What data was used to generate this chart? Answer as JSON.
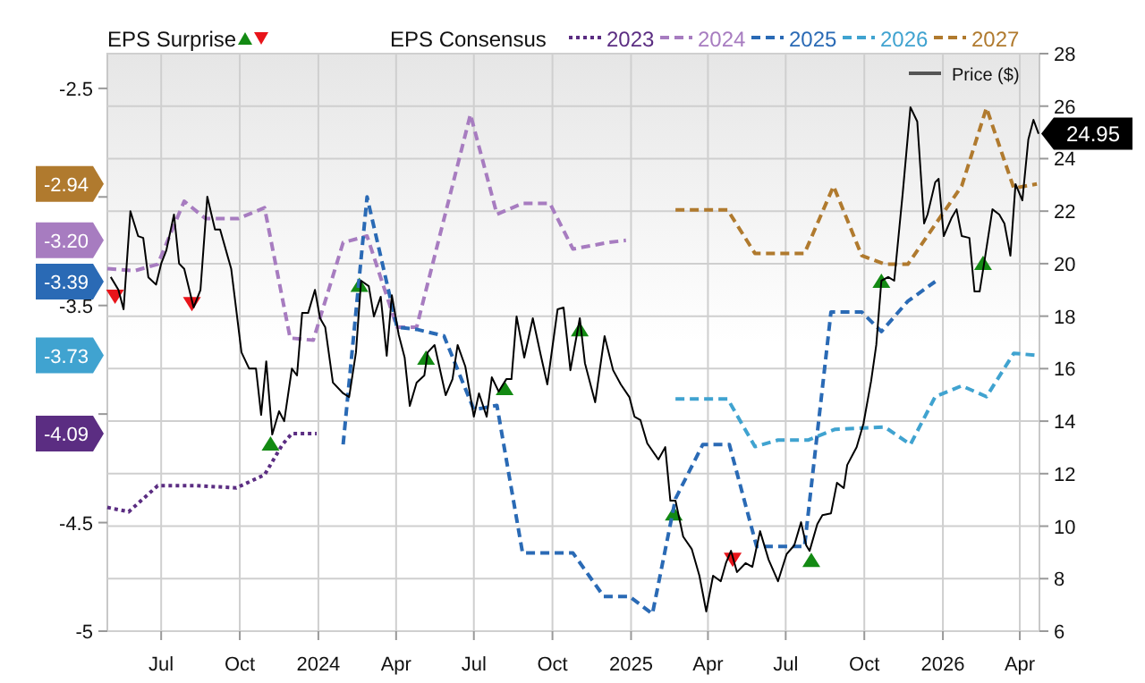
{
  "chart_data": {
    "type": "line",
    "legend_title": "EPS Consensus",
    "xlim": [
      "2023-04-29",
      "2026-04-24"
    ],
    "xticks": [
      {
        "value": "2023-07-01",
        "label": "Jul"
      },
      {
        "value": "2023-10-01",
        "label": "Oct"
      },
      {
        "value": "2024-01-01",
        "label": "2024"
      },
      {
        "value": "2024-04-01",
        "label": "Apr"
      },
      {
        "value": "2024-07-01",
        "label": "Jul"
      },
      {
        "value": "2024-10-01",
        "label": "Oct"
      },
      {
        "value": "2025-01-01",
        "label": "2025"
      },
      {
        "value": "2025-04-01",
        "label": "Apr"
      },
      {
        "value": "2025-07-01",
        "label": "Jul"
      },
      {
        "value": "2025-10-01",
        "label": "Oct"
      },
      {
        "value": "2026-01-01",
        "label": "2026"
      },
      {
        "value": "2026-04-01",
        "label": "Apr"
      }
    ],
    "annotations": [
      "EPS Surprise",
      {
        "text": "-4.09",
        "y": -4.09
      },
      {
        "text": "-3.20",
        "y": -3.2
      },
      {
        "text": "-3.39",
        "y": -3.39
      },
      {
        "text": "-3.73",
        "y": -3.73
      },
      {
        "text": "-2.94",
        "y": -2.94
      }
    ],
    "ylim": [
      -5,
      -2.34
    ],
    "yticks": [
      -5,
      -4.5,
      {
        "value": -4,
        "label": null
      },
      -3.5,
      {
        "value": -3,
        "label": null
      },
      -2.5
    ],
    "y2lim": [
      6,
      28
    ],
    "y2ticks": [
      6,
      8,
      10,
      12,
      14,
      16,
      18,
      20,
      22,
      24,
      26,
      28
    ],
    "grid": true,
    "legend": "top",
    "series": [
      {
        "type": "scatter",
        "axis": "y2",
        "marker": "triangle",
        "color": "#138a13",
        "x": [
          "2023-11-06",
          "2024-02-18",
          "2024-05-06",
          "2024-08-06",
          "2024-11-02",
          "2025-02-20",
          "2025-07-31",
          "2025-10-21",
          "2026-02-17"
        ],
        "values": [
          13.15,
          19.2,
          16.42,
          15.26,
          17.5,
          10.49,
          8.72,
          19.35,
          20.03
        ]
      },
      {
        "type": "scatter",
        "axis": "y2",
        "marker": "triangle",
        "color": "#e8141a",
        "x": [
          "2023-05-08",
          "2023-08-06",
          "2025-04-30"
        ],
        "values": [
          18.74,
          18.46,
          8.72
        ]
      },
      {
        "name": "2023",
        "line_style": "dotted",
        "color": "#5b2d82",
        "x": [
          "2023-04-29",
          "2023-05-24",
          "2023-06-27",
          "2023-08-12",
          "2023-09-27",
          "2023-10-30",
          "2023-11-20",
          "2023-12-01",
          "2023-12-30"
        ],
        "values": [
          -4.43,
          -4.45,
          -4.33,
          -4.33,
          -4.34,
          -4.28,
          -4.14,
          -4.09,
          -4.09
        ]
      },
      {
        "name": "2024",
        "line_style": "dashed",
        "color": "#a77cc0",
        "x": [
          "2023-04-29",
          "2023-05-31",
          "2023-06-27",
          "2023-07-28",
          "2023-08-22",
          "2023-09-29",
          "2023-10-30",
          "2023-11-29",
          "2023-12-26",
          "2024-01-30",
          "2024-02-27",
          "2024-04-02",
          "2024-04-25",
          "2024-06-27",
          "2024-07-28",
          "2024-08-27",
          "2024-09-28",
          "2024-10-25",
          "2024-12-05",
          "2024-12-26"
        ],
        "values": [
          -3.33,
          -3.34,
          -3.31,
          -3.02,
          -3.1,
          -3.1,
          -3.05,
          -3.65,
          -3.66,
          -3.21,
          -3.18,
          -3.6,
          -3.6,
          -2.62,
          -3.08,
          -3.03,
          -3.03,
          -3.24,
          -3.21,
          -3.2
        ]
      },
      {
        "name": "2025",
        "line_style": "dashed",
        "color": "#2a6ab5",
        "x": [
          "2024-01-30",
          "2024-02-27",
          "2024-04-02",
          "2024-04-25",
          "2024-05-27",
          "2024-07-01",
          "2024-07-28",
          "2024-08-27",
          "2024-10-25",
          "2024-11-30",
          "2024-12-30",
          "2025-01-26",
          "2025-02-22",
          "2025-03-26",
          "2025-04-26",
          "2025-05-28",
          "2025-07-23",
          "2025-08-23",
          "2025-09-28",
          "2025-10-21",
          "2025-11-21",
          "2025-12-23"
        ],
        "values": [
          -4.14,
          -3.0,
          -3.6,
          -3.61,
          -3.64,
          -3.98,
          -3.96,
          -4.64,
          -4.64,
          -4.84,
          -4.84,
          -4.92,
          -4.39,
          -4.14,
          -4.14,
          -4.61,
          -4.61,
          -3.53,
          -3.53,
          -3.62,
          -3.48,
          -3.39
        ]
      },
      {
        "name": "2026",
        "line_style": "dashed",
        "color": "#40a3d0",
        "x": [
          "2025-02-22",
          "2025-04-24",
          "2025-05-26",
          "2025-06-22",
          "2025-07-27",
          "2025-08-28",
          "2025-10-25",
          "2025-11-24",
          "2025-12-23",
          "2026-01-23",
          "2026-02-21",
          "2026-03-25",
          "2026-04-21"
        ],
        "values": [
          -3.93,
          -3.93,
          -4.15,
          -4.12,
          -4.12,
          -4.07,
          -4.06,
          -4.14,
          -3.92,
          -3.87,
          -3.92,
          -3.72,
          -3.73
        ]
      },
      {
        "name": "2027",
        "line_style": "dashed",
        "color": "#b07a2e",
        "x": [
          "2025-02-22",
          "2025-04-24",
          "2025-05-26",
          "2025-07-23",
          "2025-08-26",
          "2025-09-28",
          "2025-10-25",
          "2025-11-21",
          "2026-01-23",
          "2026-02-21",
          "2026-03-25",
          "2026-04-21"
        ],
        "values": [
          -3.06,
          -3.06,
          -3.26,
          -3.26,
          -2.95,
          -3.27,
          -3.31,
          -3.31,
          -2.95,
          -2.59,
          -2.96,
          -2.94
        ]
      },
      {
        "name": "Price ($)",
        "axis": "y2",
        "line_style": "solid",
        "color": "#000000",
        "x": [
          "2023-05-03",
          "2023-05-12",
          "2023-05-18",
          "2023-05-26",
          "2023-06-04",
          "2023-06-10",
          "2023-06-16",
          "2023-06-25",
          "2023-07-01",
          "2023-07-07",
          "2023-07-16",
          "2023-07-22",
          "2023-07-28",
          "2023-08-08",
          "2023-08-16",
          "2023-08-24",
          "2023-09-02",
          "2023-09-08",
          "2023-09-21",
          "2023-10-03",
          "2023-10-12",
          "2023-10-20",
          "2023-10-26",
          "2023-11-01",
          "2023-11-08",
          "2023-11-16",
          "2023-11-22",
          "2023-12-01",
          "2023-12-07",
          "2023-12-13",
          "2023-12-20",
          "2023-12-28",
          "2024-01-03",
          "2024-01-09",
          "2024-01-18",
          "2024-01-30",
          "2024-02-06",
          "2024-02-14",
          "2024-02-20",
          "2024-02-29",
          "2024-03-06",
          "2024-03-14",
          "2024-03-21",
          "2024-03-27",
          "2024-04-04",
          "2024-04-11",
          "2024-04-17",
          "2024-04-25",
          "2024-05-04",
          "2024-05-08",
          "2024-05-16",
          "2024-05-29",
          "2024-06-06",
          "2024-06-12",
          "2024-06-21",
          "2024-07-01",
          "2024-07-07",
          "2024-07-16",
          "2024-07-22",
          "2024-07-30",
          "2024-08-08",
          "2024-08-14",
          "2024-08-20",
          "2024-08-29",
          "2024-09-08",
          "2024-09-17",
          "2024-09-25",
          "2024-10-07",
          "2024-10-14",
          "2024-10-22",
          "2024-11-02",
          "2024-11-08",
          "2024-11-20",
          "2024-12-01",
          "2024-12-11",
          "2024-12-20",
          "2024-12-30",
          "2025-01-05",
          "2025-01-12",
          "2025-01-20",
          "2025-02-02",
          "2025-02-10",
          "2025-02-16",
          "2025-02-22",
          "2025-03-03",
          "2025-03-13",
          "2025-03-22",
          "2025-03-30",
          "2025-04-07",
          "2025-04-16",
          "2025-04-22",
          "2025-04-28",
          "2025-05-05",
          "2025-05-15",
          "2025-05-23",
          "2025-06-01",
          "2025-06-11",
          "2025-06-22",
          "2025-07-02",
          "2025-07-11",
          "2025-07-19",
          "2025-07-25",
          "2025-07-29",
          "2025-08-07",
          "2025-08-13",
          "2025-08-23",
          "2025-08-30",
          "2025-09-07",
          "2025-09-11",
          "2025-09-22",
          "2025-09-30",
          "2025-10-09",
          "2025-10-15",
          "2025-10-21",
          "2025-10-29",
          "2025-11-05",
          "2025-11-15",
          "2025-11-24",
          "2025-12-02",
          "2025-12-10",
          "2025-12-14",
          "2025-12-23",
          "2025-12-27",
          "2026-01-02",
          "2026-01-11",
          "2026-01-17",
          "2026-01-23",
          "2026-02-01",
          "2026-02-07",
          "2026-02-13",
          "2026-02-19",
          "2026-02-28",
          "2026-03-08",
          "2026-03-14",
          "2026-03-21",
          "2026-03-27",
          "2026-04-04",
          "2026-04-11",
          "2026-04-17",
          "2026-04-23"
        ],
        "values": [
          19.49,
          19.0,
          18.26,
          22.0,
          21.05,
          20.98,
          19.48,
          19.2,
          20.0,
          20.5,
          21.87,
          20.0,
          19.8,
          18.33,
          19.0,
          22.55,
          21.3,
          21.3,
          19.8,
          16.62,
          16.0,
          16.0,
          14.24,
          16.28,
          13.49,
          14.38,
          14.0,
          16.0,
          15.74,
          18.12,
          18.12,
          19.0,
          17.92,
          17.58,
          15.47,
          15.06,
          14.92,
          16.62,
          19.35,
          19.14,
          17.99,
          18.74,
          16.49,
          18.8,
          17.3,
          16.42,
          14.58,
          15.47,
          15.74,
          16.62,
          16.9,
          14.99,
          15.6,
          16.9,
          16.08,
          14.17,
          15.06,
          14.17,
          15.67,
          15.13,
          15.6,
          15.6,
          17.99,
          16.42,
          17.92,
          16.56,
          15.4,
          18.26,
          18.33,
          15.94,
          17.92,
          16.21,
          14.72,
          17.24,
          15.94,
          15.4,
          14.92,
          14.17,
          14.04,
          13.15,
          12.54,
          13.01,
          10.97,
          10.97,
          9.6,
          9.13,
          8.11,
          6.75,
          8.11,
          7.9,
          8.59,
          9.06,
          8.25,
          8.59,
          8.45,
          9.81,
          8.72,
          7.9,
          8.93,
          9.27,
          10.15,
          9.27,
          9.06,
          10.08,
          10.42,
          10.49,
          11.65,
          11.45,
          12.33,
          13.01,
          13.9,
          15.53,
          16.9,
          19.35,
          19.49,
          19.35,
          22.69,
          25.96,
          25.41,
          21.53,
          21.87,
          23.1,
          23.23,
          21.05,
          21.73,
          22.07,
          21.05,
          20.98,
          18.94,
          18.94,
          20.17,
          22.07,
          21.87,
          21.53,
          20.3,
          23.03,
          22.41,
          24.73,
          25.48,
          24.95
        ],
        "value_labels": [
          null,
          null,
          null,
          null,
          null,
          null,
          null,
          null,
          null,
          null,
          null,
          null,
          null,
          null,
          null,
          null,
          null,
          null,
          null,
          null,
          null,
          null,
          null,
          null,
          null,
          null,
          null,
          null,
          null,
          null,
          null,
          null,
          null,
          null,
          null,
          null,
          null,
          null,
          null,
          null,
          null,
          null,
          null,
          null,
          null,
          null,
          null,
          null,
          null,
          null,
          null,
          null,
          null,
          null,
          null,
          null,
          null,
          null,
          null,
          null,
          null,
          null,
          null,
          null,
          null,
          null,
          null,
          null,
          null,
          null,
          null,
          null,
          null,
          null,
          null,
          null,
          null,
          null,
          null,
          null,
          null,
          null,
          null,
          null,
          null,
          null,
          null,
          null,
          null,
          null,
          null,
          null,
          null,
          null,
          null,
          null,
          null,
          null,
          null,
          null,
          null,
          null,
          null,
          null,
          null,
          null,
          null,
          null,
          null,
          null,
          null,
          null,
          null,
          null,
          null,
          null,
          null,
          null,
          null,
          null,
          null,
          null,
          null,
          null,
          null,
          null,
          null,
          null,
          null,
          null,
          null,
          null,
          null,
          null,
          null,
          null,
          null,
          null,
          null,
          "24.95"
        ]
      }
    ]
  }
}
